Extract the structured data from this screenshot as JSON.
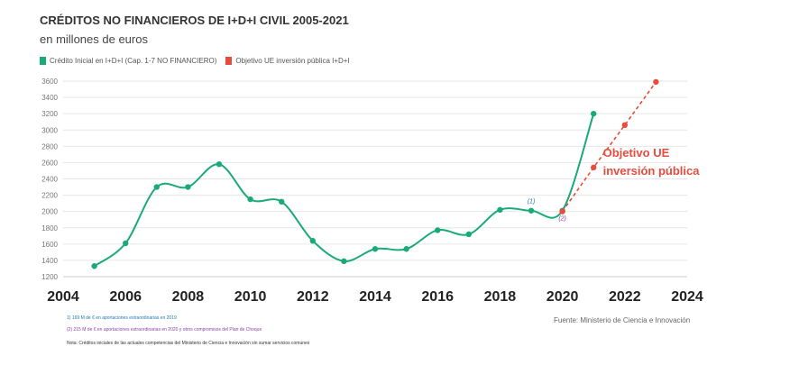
{
  "title": "CRÉDITOS NO FINANCIEROS DE I+D+I CIVIL 2005-2021",
  "subtitle": "en millones de euros",
  "legend": {
    "items": [
      {
        "label": "Crédito Inicial en I+D+I (Cap. 1-7 NO FINANCIERO)",
        "color": "#1aaa7a"
      },
      {
        "label": "Objetivo UE inversión pública I+D+I",
        "color": "#e74c3c"
      }
    ]
  },
  "chart_data": {
    "type": "line",
    "xlim": [
      2004,
      2024
    ],
    "ylim": [
      1200,
      3600
    ],
    "x_ticks": [
      "2004",
      "2006",
      "2008",
      "2010",
      "2012",
      "2014",
      "2016",
      "2018",
      "2020",
      "2022",
      "2024"
    ],
    "y_ticks": [
      "1200",
      "1400",
      "1600",
      "1800",
      "2000",
      "2200",
      "2400",
      "2600",
      "2800",
      "3000",
      "3200",
      "3400",
      "3600"
    ],
    "grid": true,
    "legend_position": "top-left",
    "series": [
      {
        "name": "Crédito Inicial en I+D+I (Cap. 1-7 NO FINANCIERO)",
        "color": "#1aaa7a",
        "style": "solid",
        "x": [
          2005,
          2006,
          2007,
          2008,
          2009,
          2010,
          2011,
          2012,
          2013,
          2014,
          2015,
          2016,
          2017,
          2018,
          2019,
          2020,
          2021
        ],
        "y": [
          1330,
          1610,
          2300,
          2300,
          2580,
          2150,
          2120,
          1640,
          1390,
          1540,
          1540,
          1770,
          1720,
          2020,
          2010,
          2010,
          3200
        ]
      },
      {
        "name": "Objetivo UE inversión pública I+D+I",
        "color": "#e74c3c",
        "style": "dashed",
        "x": [
          2020,
          2021,
          2022,
          2023
        ],
        "y": [
          2000,
          2540,
          3060,
          3590
        ]
      }
    ],
    "annotations": [
      {
        "text": "(1)",
        "x": 2019,
        "y": 2100,
        "color": "#1f78b4"
      },
      {
        "text": "(2)",
        "x": 2020,
        "y": 1890,
        "color": "#8e44ad"
      },
      {
        "text": "Objetivo UE",
        "x": 2021.3,
        "y": 2670,
        "color": "#e74c3c"
      },
      {
        "text": "inversión pública",
        "x": 2021.3,
        "y": 2450,
        "color": "#e74c3c"
      }
    ]
  },
  "notes": {
    "note1": "1) 169 M de € en aportaciones extraordinarias en 2019",
    "note2": "(2) 215 M de € en aportaciones extraordinarias en 2020 y otros compromisos del Plan de Choque",
    "note3": "Nota: Créditos iniciales de las actuales competencias del Ministerio de Ciencia e Innovación sin sumar servicios comunes"
  },
  "source": "Fuente: Ministerio de Ciencia e Innovación"
}
